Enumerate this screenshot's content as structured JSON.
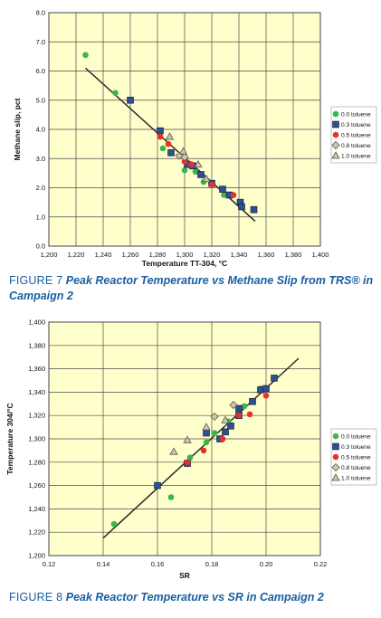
{
  "chart_data": [
    {
      "type": "scatter",
      "xlabel": "Temperature TT-304, °C",
      "ylabel": "Methane slip, pct",
      "xlim": [
        1200,
        1400
      ],
      "ylim": [
        0,
        8
      ],
      "x_ticks": [
        1200,
        1220,
        1240,
        1260,
        1280,
        1300,
        1320,
        1340,
        1360,
        1380,
        1400
      ],
      "x_tick_labels": [
        "1,200",
        "1,220",
        "1,240",
        "1,260",
        "1,280",
        "1,300",
        "1,320",
        "1,340",
        "1,360",
        "1,380",
        "1,400"
      ],
      "y_ticks": [
        0,
        1,
        2,
        3,
        4,
        5,
        6,
        7,
        8
      ],
      "y_tick_labels": [
        "0.0",
        "1.0",
        "2.0",
        "3.0",
        "4.0",
        "5.0",
        "6.0",
        "7.0",
        "8.0"
      ],
      "grid": true,
      "legend_position": "right",
      "trendline": [
        [
          1227,
          6.1
        ],
        [
          1352,
          0.85
        ]
      ],
      "series": [
        {
          "name": "0.0 toluene",
          "marker": "circle",
          "color": "#3cb54a",
          "points": [
            [
              1227,
              6.55
            ],
            [
              1249,
              5.25
            ],
            [
              1284,
              3.35
            ],
            [
              1300,
              2.6
            ],
            [
              1308,
              2.55
            ],
            [
              1314,
              2.2
            ],
            [
              1329,
              1.75
            ]
          ]
        },
        {
          "name": "0.3 toluene",
          "marker": "square",
          "color": "#2f4f8f",
          "points": [
            [
              1260,
              5.0
            ],
            [
              1282,
              3.95
            ],
            [
              1290,
              3.2
            ],
            [
              1302,
              2.8
            ],
            [
              1306,
              2.75
            ],
            [
              1312,
              2.45
            ],
            [
              1320,
              2.15
            ],
            [
              1328,
              1.95
            ],
            [
              1333,
              1.75
            ],
            [
              1341,
              1.5
            ],
            [
              1342,
              1.35
            ],
            [
              1351,
              1.25
            ]
          ]
        },
        {
          "name": "0.5 toluene",
          "marker": "circle",
          "color": "#e8302a",
          "points": [
            [
              1282,
              3.75
            ],
            [
              1288,
              3.5
            ],
            [
              1300,
              2.9
            ],
            [
              1305,
              2.8
            ],
            [
              1320,
              2.1
            ],
            [
              1336,
              1.75
            ]
          ]
        },
        {
          "name": "0.8 toluene",
          "marker": "diamond",
          "color": "#d8c8a0",
          "points": [
            [
              1296,
              3.1
            ],
            [
              1300,
              3.05
            ]
          ]
        },
        {
          "name": "1.0 toluene",
          "marker": "triangle",
          "color": "#c8c8b0",
          "points": [
            [
              1289,
              3.75
            ],
            [
              1299,
              3.25
            ],
            [
              1310,
              2.8
            ],
            [
              1316,
              2.3
            ]
          ]
        }
      ]
    },
    {
      "type": "scatter",
      "xlabel": "SR",
      "ylabel": "Temperature 304/°C",
      "xlim": [
        0.12,
        0.22
      ],
      "ylim": [
        1200,
        1400
      ],
      "x_ticks": [
        0.12,
        0.14,
        0.16,
        0.18,
        0.2,
        0.22
      ],
      "x_tick_labels": [
        "0.12",
        "0.14",
        "0.16",
        "0.18",
        "0.20",
        "0.22"
      ],
      "y_ticks": [
        1200,
        1220,
        1240,
        1260,
        1280,
        1300,
        1320,
        1340,
        1360,
        1380,
        1400
      ],
      "y_tick_labels": [
        "1,200",
        "1,220",
        "1,240",
        "1,260",
        "1,280",
        "1,300",
        "1,320",
        "1,340",
        "1,360",
        "1,380",
        "1,400"
      ],
      "grid": true,
      "legend_position": "right",
      "trendline": [
        [
          0.14,
          1215
        ],
        [
          0.212,
          1369
        ]
      ],
      "series": [
        {
          "name": "0.0 toluene",
          "marker": "circle",
          "color": "#3cb54a",
          "points": [
            [
              0.144,
              1227
            ],
            [
              0.165,
              1250
            ],
            [
              0.172,
              1284
            ],
            [
              0.178,
              1297
            ],
            [
              0.181,
              1305
            ],
            [
              0.186,
              1315
            ],
            [
              0.192,
              1328
            ],
            [
              0.198,
              1343
            ]
          ]
        },
        {
          "name": "0.3 toluene",
          "marker": "square",
          "color": "#2f4f8f",
          "points": [
            [
              0.16,
              1260
            ],
            [
              0.171,
              1279
            ],
            [
              0.178,
              1305
            ],
            [
              0.183,
              1300
            ],
            [
              0.185,
              1306
            ],
            [
              0.187,
              1311
            ],
            [
              0.19,
              1320
            ],
            [
              0.19,
              1326
            ],
            [
              0.195,
              1332
            ],
            [
              0.198,
              1342
            ],
            [
              0.2,
              1343
            ],
            [
              0.203,
              1352
            ]
          ]
        },
        {
          "name": "0.5 toluene",
          "marker": "circle",
          "color": "#e8302a",
          "points": [
            [
              0.171,
              1280
            ],
            [
              0.177,
              1290
            ],
            [
              0.184,
              1300
            ],
            [
              0.19,
              1320
            ],
            [
              0.194,
              1321
            ],
            [
              0.2,
              1337
            ]
          ]
        },
        {
          "name": "0.8 toluene",
          "marker": "diamond",
          "color": "#d8c8a0",
          "points": [
            [
              0.181,
              1319
            ],
            [
              0.188,
              1329
            ]
          ]
        },
        {
          "name": "1.0 toluene",
          "marker": "triangle",
          "color": "#c8c8b0",
          "points": [
            [
              0.166,
              1289
            ],
            [
              0.171,
              1299
            ],
            [
              0.178,
              1310
            ],
            [
              0.185,
              1316
            ]
          ]
        }
      ]
    }
  ],
  "captions": {
    "fig7_lead": "FIGURE 7",
    "fig7_text": "Peak Reactor Temperature vs Methane Slip from TRS® in Campaign 2",
    "fig8_lead": "FIGURE 8",
    "fig8_text": "Peak Reactor Temperature vs SR in Campaign 2"
  },
  "colors": {
    "plot_background": "#ffffcc",
    "grid": "#4a4a4a",
    "trendline": "#2a2a2a",
    "caption": "#1a5fa0"
  }
}
